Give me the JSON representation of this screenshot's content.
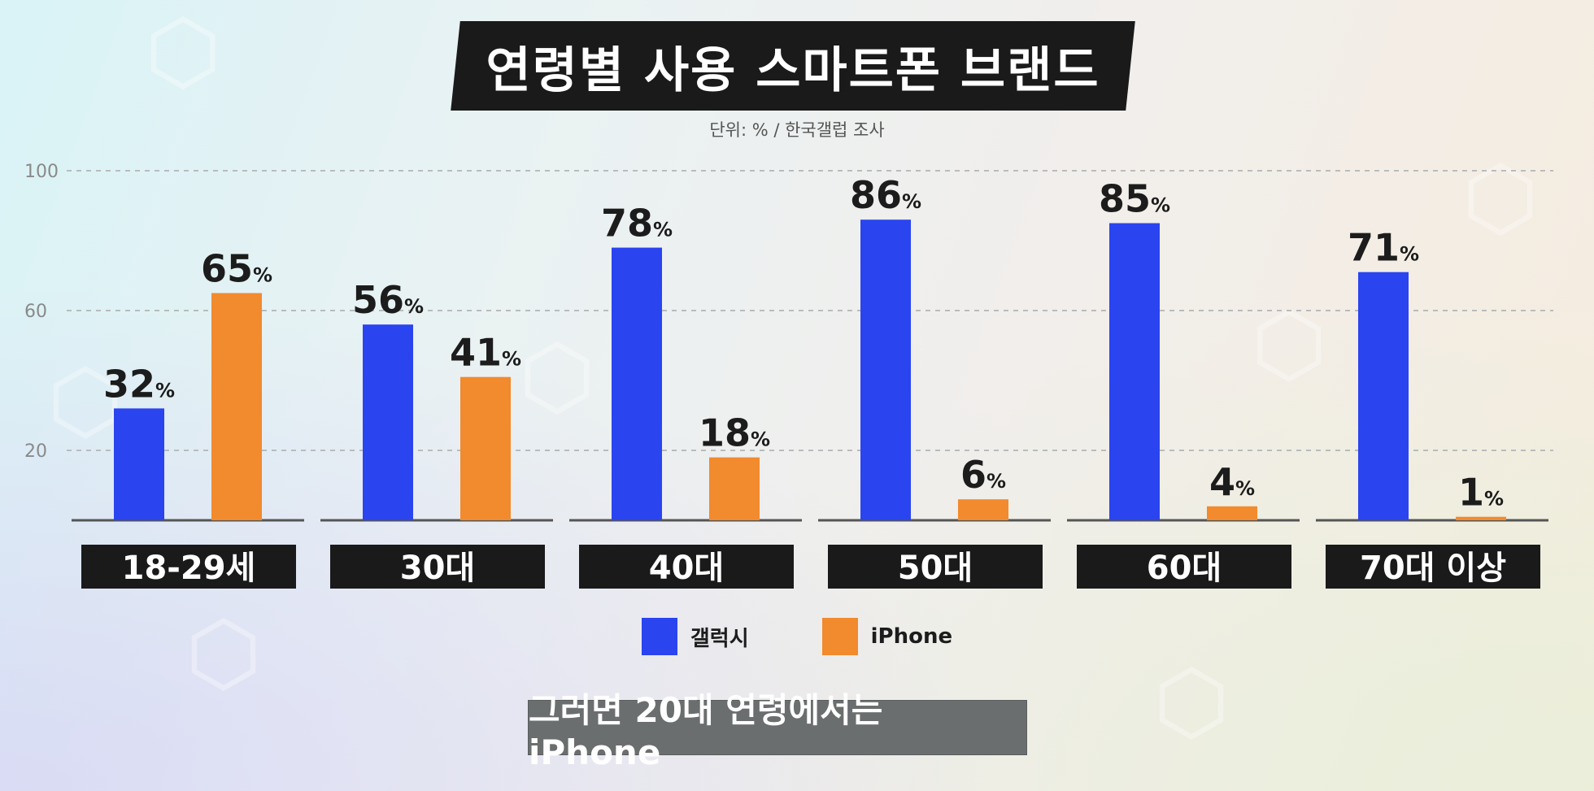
{
  "header": {
    "title": "연령별 사용 스마트폰 브랜드",
    "source": "단위: % / 한국갤럽 조사"
  },
  "caption": "그러면 20대 연령에서는 iPhone",
  "colors": {
    "galaxy": "#2a44f0",
    "iphone": "#f28a2e"
  },
  "chart_data": {
    "type": "bar",
    "title": "연령별 사용 스마트폰 브랜드",
    "subtitle": "단위: % / 한국갤럽 조사",
    "categories": [
      "18-29세",
      "30대",
      "40대",
      "50대",
      "60대",
      "70대 이상"
    ],
    "series": [
      {
        "name": "갤럭시",
        "values": [
          32,
          56,
          78,
          86,
          85,
          71
        ],
        "color": "#2a44f0"
      },
      {
        "name": "iPhone",
        "values": [
          65,
          41,
          18,
          6,
          4,
          1
        ],
        "color": "#f28a2e"
      }
    ],
    "value_suffix": "%",
    "y_ticks": [
      20,
      60,
      100
    ],
    "ylim": [
      0,
      100
    ],
    "grid": true,
    "legend_position": "bottom-center"
  }
}
